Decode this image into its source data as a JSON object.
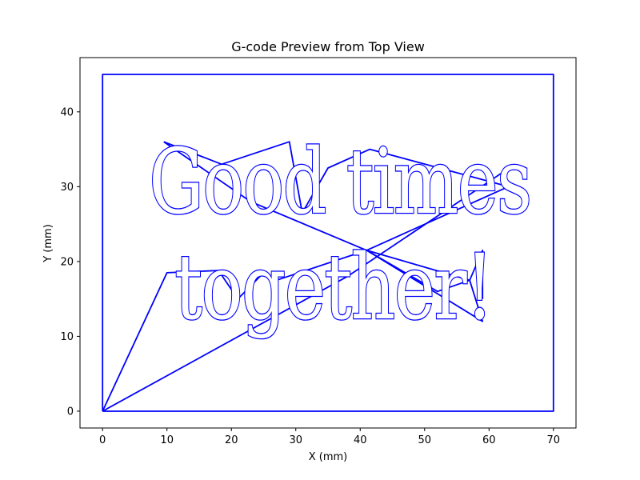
{
  "chart_data": {
    "type": "line",
    "title": "G-code Preview from Top View",
    "xlabel": "X (mm)",
    "ylabel": "Y (mm)",
    "xlim": [
      -3.5,
      73.5
    ],
    "ylim": [
      -2.25,
      47.25
    ],
    "x_ticks": [
      0,
      10,
      20,
      30,
      40,
      50,
      60,
      70
    ],
    "y_ticks": [
      0,
      10,
      20,
      30,
      40
    ],
    "grid": false,
    "line_color": "#0000ff",
    "text_lines": [
      "Good times",
      "together!"
    ],
    "series": [
      {
        "x": [
          0,
          70,
          70,
          0,
          0
        ],
        "y": [
          0,
          0,
          45,
          45,
          0
        ]
      },
      {
        "x": [
          0,
          10,
          18,
          21,
          25,
          27,
          41,
          52,
          57,
          59,
          59
        ],
        "y": [
          0,
          18.5,
          18.8,
          15,
          18.5,
          17.5,
          21.5,
          16,
          17.5,
          21.5,
          15
        ]
      },
      {
        "x": [
          0,
          38,
          64
        ],
        "y": [
          0,
          18,
          33
        ]
      },
      {
        "x": [
          9.5,
          18.5,
          29,
          31,
          35,
          41.5,
          63,
          41,
          59,
          57,
          41,
          23,
          9.5
        ],
        "y": [
          36,
          33,
          36,
          26.5,
          32.5,
          35,
          30,
          21.5,
          12,
          17.5,
          21.5,
          28,
          36
        ]
      }
    ]
  }
}
